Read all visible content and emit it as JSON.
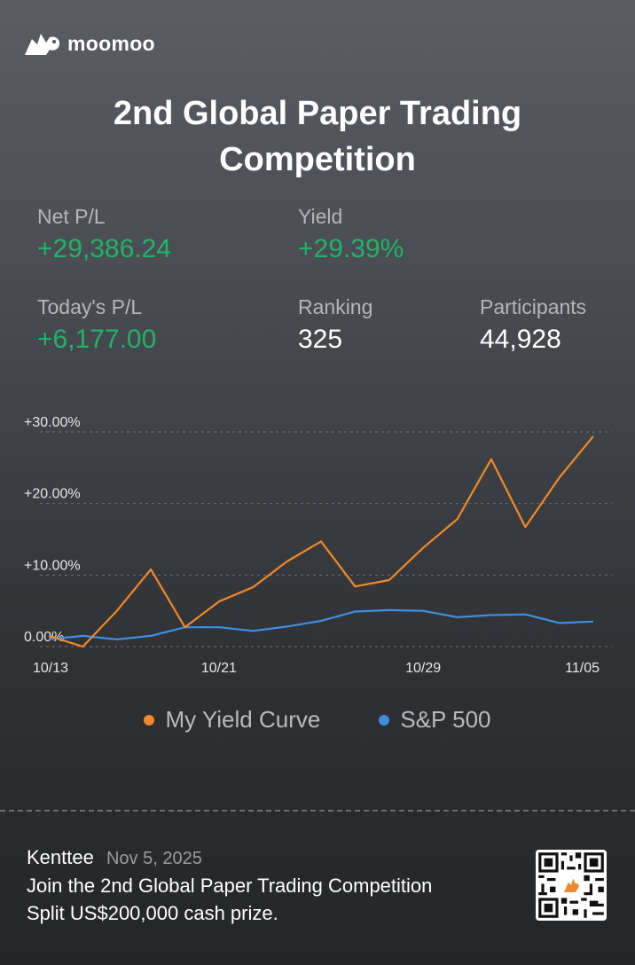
{
  "brand": {
    "name": "moomoo"
  },
  "title": "2nd Global Paper Trading Competition",
  "stats": {
    "net_pl": {
      "label": "Net P/L",
      "value": "+29,386.24"
    },
    "yield": {
      "label": "Yield",
      "value": "+29.39%"
    },
    "today_pl": {
      "label": "Today's P/L",
      "value": "+6,177.00"
    },
    "ranking": {
      "label": "Ranking",
      "value": "325"
    },
    "participants": {
      "label": "Participants",
      "value": "44,928"
    }
  },
  "chart_data": {
    "type": "line",
    "x_tick_labels": [
      "10/13",
      "10/21",
      "10/29",
      "11/05"
    ],
    "y_tick_labels": [
      "+30.00%",
      "+20.00%",
      "+10.00%",
      "0.00%"
    ],
    "ylim": [
      0,
      30
    ],
    "x_ticks_at_index": [
      0,
      5,
      11,
      16
    ],
    "grid": true,
    "legend": "bottom-center",
    "series": [
      {
        "name": "My Yield Curve",
        "color": "#f0892a",
        "values": [
          1.5,
          0.0,
          5.0,
          10.8,
          2.7,
          6.3,
          8.3,
          11.9,
          14.7,
          8.4,
          9.3,
          13.8,
          17.8,
          26.2,
          16.7,
          23.6,
          29.4
        ]
      },
      {
        "name": "S&P 500",
        "color": "#3f8fe0",
        "values": [
          1.0,
          1.5,
          1.0,
          1.5,
          2.7,
          2.7,
          2.2,
          2.8,
          3.6,
          4.9,
          5.1,
          5.0,
          4.1,
          4.4,
          4.5,
          3.3,
          3.5
        ]
      }
    ]
  },
  "footer": {
    "user": "Kenttee",
    "date": "Nov 5, 2025",
    "line1": "Join the 2nd Global Paper Trading Competition",
    "line2": "Split US$200,000 cash prize."
  },
  "icons": {
    "logo": "bull-logo-icon",
    "qr": "qr-code-icon"
  }
}
